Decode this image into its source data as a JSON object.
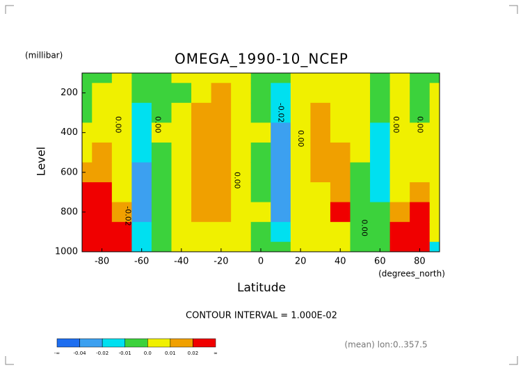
{
  "chart_data": {
    "type": "contour",
    "title": "OMEGA_1990-10_NCEP",
    "y_unit": "(millibar)",
    "y_label": "Level",
    "x_label": "Latitude",
    "x_unit": "(degrees_north)",
    "subtitle": "CONTOUR INTERVAL = 1.000E-02",
    "annotation": "(mean) lon:0..357.5",
    "xlim": [
      -90,
      90
    ],
    "xticks": [
      -80,
      -60,
      -40,
      -20,
      0,
      20,
      40,
      60,
      80
    ],
    "ylim": [
      1000,
      100
    ],
    "yticks": [
      200,
      400,
      600,
      800,
      1000
    ],
    "x": [
      -90,
      -80,
      -70,
      -60,
      -50,
      -40,
      -30,
      -20,
      -10,
      0,
      10,
      20,
      30,
      40,
      50,
      60,
      70,
      80,
      90
    ],
    "levels": [
      100,
      200,
      300,
      400,
      500,
      600,
      700,
      800,
      900,
      1000
    ],
    "z": [
      [
        -0.005,
        -0.005,
        -0.003,
        0.003,
        0.005,
        0.015,
        0.03,
        0.04,
        0.05,
        0.05
      ],
      [
        -0.003,
        0.003,
        0.004,
        0.006,
        0.012,
        0.015,
        0.025,
        0.04,
        0.05,
        0.06
      ],
      [
        0.002,
        0.003,
        0.002,
        0.001,
        0.002,
        0.005,
        0.008,
        0.015,
        0.025,
        0.03
      ],
      [
        -0.004,
        -0.006,
        -0.012,
        -0.015,
        -0.018,
        -0.025,
        -0.025,
        -0.025,
        -0.02,
        -0.012
      ],
      [
        -0.002,
        -0.003,
        -0.002,
        0.001,
        -0.002,
        -0.004,
        -0.005,
        -0.004,
        -0.003,
        -0.002
      ],
      [
        0.002,
        -0.003,
        0.004,
        0.005,
        0.005,
        0.005,
        0.005,
        0.005,
        0.004,
        0.002
      ],
      [
        0.003,
        0.006,
        0.011,
        0.013,
        0.014,
        0.014,
        0.013,
        0.012,
        0.006,
        0.004
      ],
      [
        0.004,
        0.011,
        0.013,
        0.014,
        0.014,
        0.014,
        0.013,
        0.011,
        0.006,
        0.004
      ],
      [
        0.003,
        0.002,
        0.003,
        0.003,
        0.002,
        0.001,
        0.002,
        0.003,
        0.004,
        0.004
      ],
      [
        -0.003,
        -0.004,
        -0.002,
        0.002,
        -0.003,
        -0.004,
        -0.004,
        0.002,
        -0.004,
        -0.003
      ],
      [
        -0.004,
        -0.012,
        -0.018,
        -0.022,
        -0.025,
        -0.025,
        -0.025,
        -0.022,
        -0.015,
        -0.006
      ],
      [
        0.004,
        0.003,
        0.003,
        0.002,
        0.003,
        0.004,
        0.004,
        0.004,
        0.003,
        0.002
      ],
      [
        0.005,
        0.008,
        0.012,
        0.013,
        0.012,
        0.011,
        0.008,
        0.006,
        0.004,
        0.003
      ],
      [
        0.003,
        0.004,
        0.006,
        0.008,
        0.011,
        0.011,
        0.012,
        0.02,
        0.008,
        0.003
      ],
      [
        0.003,
        0.002,
        0.002,
        0.001,
        0.001,
        -0.002,
        -0.003,
        -0.004,
        -0.004,
        -0.002
      ],
      [
        -0.003,
        -0.004,
        -0.007,
        -0.012,
        -0.014,
        -0.014,
        -0.012,
        -0.008,
        -0.004,
        -0.003
      ],
      [
        0.002,
        0.002,
        0.001,
        0.002,
        0.004,
        0.006,
        0.008,
        0.015,
        0.025,
        0.03
      ],
      [
        -0.002,
        -0.003,
        -0.002,
        0.002,
        0.004,
        0.008,
        0.012,
        0.025,
        0.03,
        0.03
      ],
      [
        -0.002,
        0.002,
        0.004,
        0.004,
        0.003,
        0.004,
        0.003,
        0.003,
        0.002,
        -0.012
      ]
    ],
    "contour_levels": [
      -0.04,
      -0.02,
      -0.01,
      {
        "value": 0,
        "label": "0.0"
      },
      0.01,
      0.02
    ],
    "low_label": "-∞",
    "high_label": "∞",
    "colors": [
      "#1e6ef0",
      "#3ca0f0",
      "#00e0f0",
      "#3cd23c",
      "#f0f000",
      "#f0a000",
      "#f00000"
    ],
    "contour_labels": [
      {
        "label": "0.00",
        "x": -72,
        "y": 360
      },
      {
        "label": "0.00",
        "x": -52,
        "y": 360
      },
      {
        "label": "-0.02",
        "x": -67,
        "y": 820
      },
      {
        "label": "0.00",
        "x": -12,
        "y": 640
      },
      {
        "label": "-0.02",
        "x": 10,
        "y": 300
      },
      {
        "label": "0.00",
        "x": 20,
        "y": 430
      },
      {
        "label": "0.00",
        "x": 52,
        "y": 880
      },
      {
        "label": "0.00",
        "x": 68,
        "y": 360
      },
      {
        "label": "0.00",
        "x": 80,
        "y": 360
      }
    ]
  }
}
